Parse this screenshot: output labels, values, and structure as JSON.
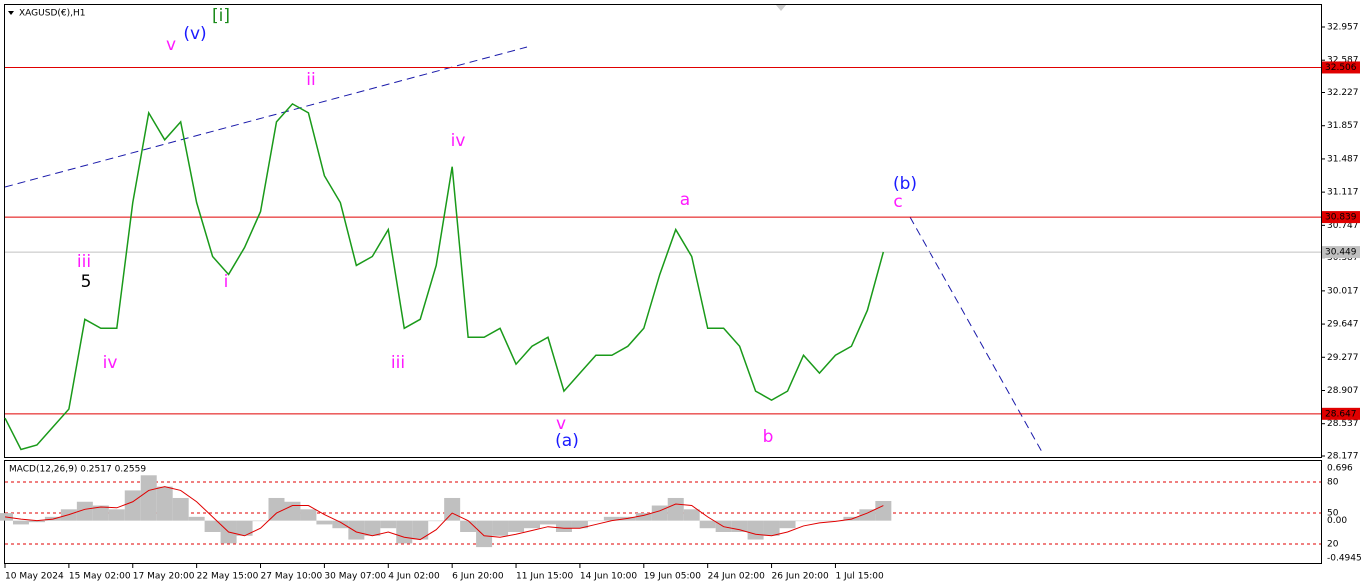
{
  "chart_data": {
    "type": "line",
    "title": "XAGUSD(€),H1",
    "categories": [
      "10 May 2024",
      null,
      null,
      null,
      "15 May 02:00",
      null,
      null,
      null,
      "17 May 20:00",
      null,
      null,
      null,
      "22 May 15:00",
      null,
      null,
      null,
      "27 May 10:00",
      null,
      null,
      null,
      "30 May 07:00",
      null,
      null,
      null,
      "4 Jun 02:00",
      null,
      null,
      null,
      "6 Jun 20:00",
      null,
      null,
      null,
      "11 Jun 15:00",
      null,
      null,
      null,
      "14 Jun 10:00",
      null,
      null,
      null,
      "19 Jun 05:00",
      null,
      null,
      null,
      "24 Jun 02:00",
      null,
      null,
      null,
      "26 Jun 20:00",
      null,
      null,
      null,
      "1 Jul 15:00",
      null,
      null,
      null
    ],
    "series": [
      {
        "name": "XAGUSD",
        "color": "#1a9a1a",
        "values": [
          28.6,
          28.25,
          28.3,
          28.5,
          28.7,
          29.7,
          29.6,
          29.6,
          31.0,
          32.0,
          31.7,
          31.9,
          31.0,
          30.4,
          30.2,
          30.5,
          30.9,
          31.9,
          32.1,
          32.0,
          31.3,
          31.0,
          30.3,
          30.4,
          30.7,
          29.6,
          29.7,
          30.3,
          31.4,
          29.5,
          29.5,
          29.6,
          29.2,
          29.4,
          29.5,
          28.9,
          29.1,
          29.3,
          29.3,
          29.4,
          29.6,
          30.2,
          30.7,
          30.4,
          29.6,
          29.6,
          29.4,
          28.9,
          28.8,
          28.9,
          29.3,
          29.1,
          29.3,
          29.4,
          29.8,
          30.45
        ]
      }
    ],
    "ylim": [
      28.166,
      33.202
    ],
    "yticks": [
      32.957,
      32.587,
      32.227,
      31.857,
      31.487,
      31.117,
      30.747,
      30.387,
      30.017,
      29.647,
      29.277,
      28.907,
      28.537,
      28.177
    ],
    "levels": [
      {
        "value": 32.506,
        "label": "32.506",
        "color": "#e00000"
      },
      {
        "value": 30.839,
        "label": "30.839",
        "color": "#e00000"
      },
      {
        "value": 28.647,
        "label": "28.647",
        "color": "#e00000"
      }
    ],
    "current_price": {
      "value": 30.449,
      "label": "30.449",
      "color": "#c0c0c0"
    },
    "annotations": [
      {
        "text": "[i]",
        "color": "#1a8a1a"
      },
      {
        "text": "(v)",
        "color": "#1a1aff"
      },
      {
        "text": "v",
        "color": "#ff1aff"
      },
      {
        "text": "ii",
        "color": "#ff1aff"
      },
      {
        "text": "iv",
        "color": "#ff1aff"
      },
      {
        "text": "iii",
        "color": "#ff1aff"
      },
      {
        "text": "5",
        "color": "#000000"
      },
      {
        "text": "iv",
        "color": "#ff1aff"
      },
      {
        "text": "i",
        "color": "#ff1aff"
      },
      {
        "text": "iii",
        "color": "#ff1aff"
      },
      {
        "text": "v",
        "color": "#ff1aff"
      },
      {
        "text": "(a)",
        "color": "#1a1aff"
      },
      {
        "text": "a",
        "color": "#ff1aff"
      },
      {
        "text": "b",
        "color": "#ff1aff"
      },
      {
        "text": "(b)",
        "color": "#1a1aff"
      },
      {
        "text": "c",
        "color": "#ff1aff"
      }
    ],
    "macd": {
      "title": "MACD(12,26,9) 0.2517 0.2559",
      "histogram": {
        "color": "#c0c0c0",
        "values": [
          0.1,
          -0.05,
          -0.02,
          0.05,
          0.15,
          0.25,
          0.2,
          0.15,
          0.4,
          0.6,
          0.45,
          0.3,
          0.05,
          -0.15,
          -0.3,
          -0.2,
          0.0,
          0.3,
          0.25,
          0.15,
          -0.05,
          -0.1,
          -0.25,
          -0.2,
          -0.1,
          -0.3,
          -0.25,
          0.0,
          0.3,
          -0.15,
          -0.35,
          -0.2,
          -0.15,
          -0.1,
          -0.05,
          -0.15,
          -0.1,
          0.0,
          0.05,
          0.05,
          0.1,
          0.2,
          0.3,
          0.15,
          -0.1,
          -0.15,
          -0.15,
          -0.25,
          -0.2,
          -0.1,
          0.0,
          0.0,
          0.0,
          0.05,
          0.15,
          0.26
        ]
      },
      "signal": {
        "color": "#e00000",
        "values": [
          0.05,
          0.02,
          0.0,
          0.02,
          0.08,
          0.15,
          0.18,
          0.17,
          0.25,
          0.4,
          0.45,
          0.4,
          0.25,
          0.05,
          -0.15,
          -0.2,
          -0.1,
          0.1,
          0.2,
          0.2,
          0.08,
          -0.02,
          -0.15,
          -0.2,
          -0.15,
          -0.22,
          -0.25,
          -0.12,
          0.1,
          0.0,
          -0.2,
          -0.22,
          -0.18,
          -0.13,
          -0.08,
          -0.1,
          -0.1,
          -0.05,
          0.0,
          0.03,
          0.07,
          0.13,
          0.22,
          0.2,
          0.05,
          -0.08,
          -0.12,
          -0.18,
          -0.2,
          -0.15,
          -0.07,
          -0.03,
          -0.01,
          0.02,
          0.1,
          0.2
        ]
      },
      "ylim": [
        -0.547,
        0.789
      ],
      "yticks": [
        0.696,
        {
          "value": 0,
          "label": "0.00"
        },
        -0.4945
      ],
      "level_lim": [
        2.6,
        100.3
      ],
      "level_ticks": [
        80,
        50,
        20
      ]
    }
  }
}
